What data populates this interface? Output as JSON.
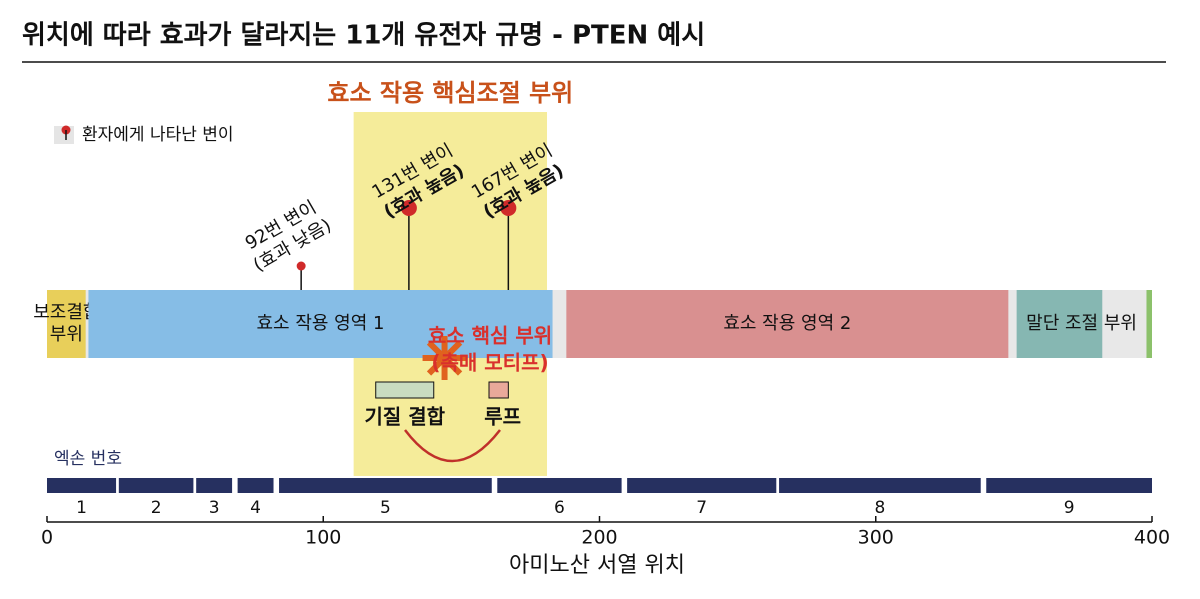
{
  "title": "위치에 따라 효과가 달라지는 11개 유전자 규명 - PTEN 예시",
  "highlight": {
    "label": "효소 작용 핵심조절 부위",
    "start": 111,
    "end": 181,
    "color": "#f5ec9a",
    "label_color": "#c8511a"
  },
  "legend": "환자에게 나타난 변이",
  "mutations": [
    {
      "position": 92,
      "label": "92번 변이",
      "note": "(효과 낮음)",
      "size": "small"
    },
    {
      "position": 131,
      "label": "131번 변이",
      "note": "(효과 높음)",
      "size": "large"
    },
    {
      "position": 167,
      "label": "167번 변이",
      "note": "(효과 높음)",
      "size": "large"
    }
  ],
  "domains": [
    {
      "lines": [
        "보조결합",
        "부위"
      ],
      "start": 0,
      "end": 14,
      "color": "#e8cf5a"
    },
    {
      "lines": [
        "효소 작용 영역 1"
      ],
      "start": 15,
      "end": 183,
      "color": "#86bde6"
    },
    {
      "lines": [
        "효소 작용 영역 2"
      ],
      "start": 188,
      "end": 348,
      "color": "#d99090"
    },
    {
      "lines": [
        "말단 조절 부위"
      ],
      "start": 351,
      "end": 382,
      "color": "#86b7b2"
    },
    {
      "lines": null,
      "start": 398,
      "end": 400,
      "color": "#8cc16b"
    }
  ],
  "catalytic_site": {
    "label": "효소 핵심 부위",
    "note": "(촉매 모티프)",
    "position": 124,
    "color": "#d9302c"
  },
  "motifs": [
    {
      "label": "기질 결합",
      "start": 119,
      "end": 140,
      "color": "#c9dcc0"
    },
    {
      "label": "루프",
      "start": 160,
      "end": 167,
      "color": "#e9a99a"
    }
  ],
  "exons": {
    "title": "엑손 번호",
    "color": "#263060",
    "segments": [
      {
        "label": "1",
        "start": 0,
        "end": 25
      },
      {
        "label": "2",
        "start": 26,
        "end": 53
      },
      {
        "label": "3",
        "start": 54,
        "end": 67
      },
      {
        "label": "4",
        "start": 69,
        "end": 82
      },
      {
        "label": "5",
        "start": 84,
        "end": 161
      },
      {
        "label": "6",
        "start": 163,
        "end": 208
      },
      {
        "label": "7",
        "start": 210,
        "end": 264
      },
      {
        "label": "8",
        "start": 265,
        "end": 338
      },
      {
        "label": "9",
        "start": 340,
        "end": 400
      }
    ]
  },
  "axis": {
    "label": "아미노산 서열 위치",
    "xlim": [
      0,
      400
    ],
    "xticks": [
      0,
      100,
      200,
      300,
      400
    ]
  }
}
